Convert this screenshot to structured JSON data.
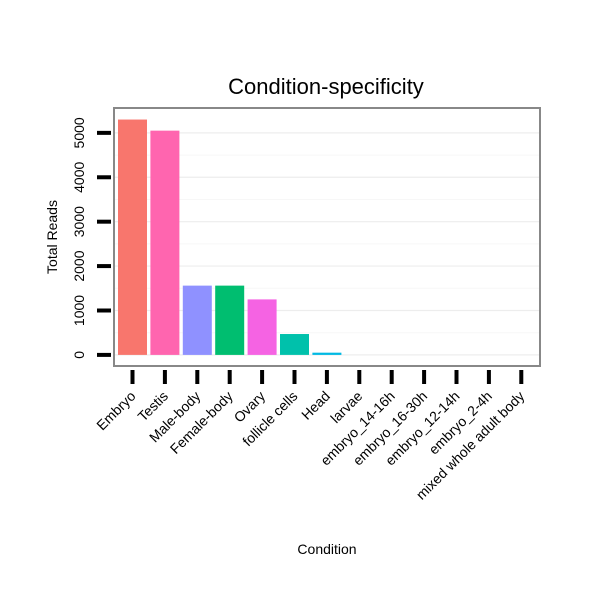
{
  "chart_data": {
    "type": "bar",
    "title": "Condition-specificity",
    "xlabel": "Condition",
    "ylabel": "Total Reads",
    "ylim": [
      -250,
      5560
    ],
    "yticks": [
      0,
      1000,
      2000,
      3000,
      4000,
      5000
    ],
    "grid": true,
    "legend": "none",
    "categories": [
      "Embryo",
      "Testis",
      "Male-body",
      "Female-body",
      "Ovary",
      "follicle cells",
      "Head",
      "larvae",
      "embryo_14-16h",
      "embryo_16-30h",
      "embryo_12-14h",
      "embryo_2-4h",
      "mixed whole adult body"
    ],
    "values": [
      5300,
      5050,
      1560,
      1560,
      1250,
      470,
      50,
      0,
      0,
      0,
      0,
      0,
      0
    ],
    "colors": [
      "#F8766D",
      "#FF65AF",
      "#8F91FF",
      "#00BE70",
      "#F563E3",
      "#00C1AB",
      "#00B9E3",
      "#00B5EE",
      "#00A6FF",
      "#B983FF",
      "#E76BF3",
      "#FD61D1",
      "#FF67A4"
    ]
  }
}
